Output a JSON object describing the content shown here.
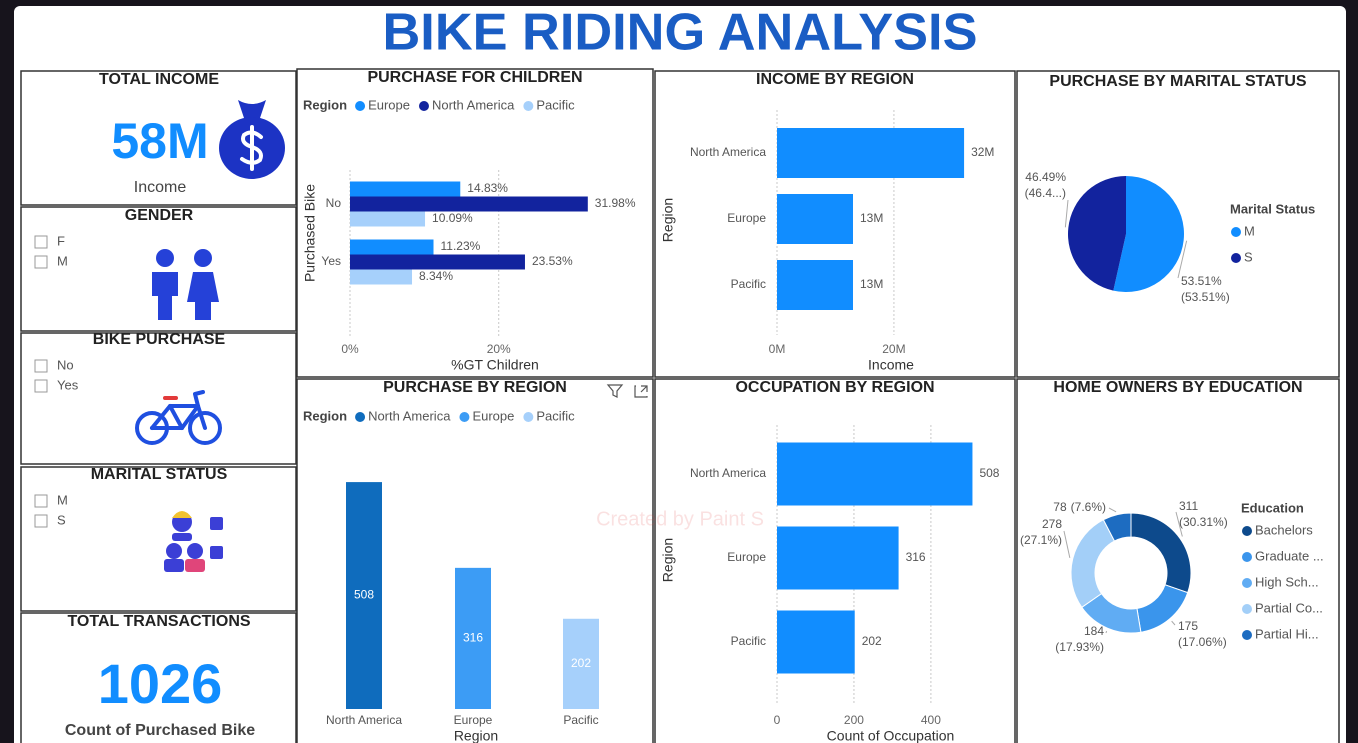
{
  "title": "BIKE RIDING ANALYSIS",
  "watermark": "Created by Paint S",
  "cards": [
    {
      "title": "TOTAL INCOME",
      "value": "58M",
      "label": "Income"
    },
    {
      "title": "TOTAL TRANSACTIONS",
      "value": "1026",
      "label": "Count of Purchased Bike"
    }
  ],
  "slicers": [
    {
      "title": "GENDER",
      "options": [
        "F",
        "M"
      ]
    },
    {
      "title": "BIKE PURCHASE",
      "options": [
        "No",
        "Yes"
      ]
    },
    {
      "title": "MARITAL STATUS",
      "options": [
        "M",
        "S"
      ]
    }
  ],
  "chart_data": [
    {
      "type": "bar",
      "orientation": "horizontal",
      "title": "PURCHASE FOR CHILDREN",
      "legend_title": "Region",
      "categories": [
        "No",
        "Yes"
      ],
      "series": [
        {
          "name": "Europe",
          "color": "#118dff",
          "values": [
            14.83,
            11.23
          ],
          "value_labels": [
            "14.83%",
            "11.23%"
          ]
        },
        {
          "name": "North America",
          "color": "#12239e",
          "values": [
            31.98,
            23.53
          ],
          "value_labels": [
            "31.98%",
            "23.53%"
          ]
        },
        {
          "name": "Pacific",
          "color": "#a6d0fb",
          "values": [
            10.09,
            8.34
          ],
          "value_labels": [
            "10.09%",
            "8.34%"
          ]
        }
      ],
      "xlim": [
        0,
        39
      ],
      "xticks": [
        {
          "value": 0,
          "label": "0%"
        },
        {
          "value": 20,
          "label": "20%"
        }
      ],
      "xlabel": "%GT Children",
      "ylabel": "Purchased Bike",
      "grid": true
    },
    {
      "type": "bar",
      "orientation": "horizontal",
      "title": "INCOME BY REGION",
      "categories": [
        "North America",
        "Europe",
        "Pacific"
      ],
      "values": [
        32000000,
        13000000,
        13000000
      ],
      "value_labels": [
        "32M",
        "13M",
        "13M"
      ],
      "color": "#118dff",
      "xlim": [
        0,
        39000000
      ],
      "xticks": [
        {
          "value": 0,
          "label": "0M"
        },
        {
          "value": 20000000,
          "label": "20M"
        }
      ],
      "xlabel": "Income",
      "ylabel": "Region",
      "grid": true
    },
    {
      "type": "pie",
      "title": "PURCHASE BY MARITAL STATUS",
      "legend_title": "Marital Status",
      "categories": [
        "M",
        "S"
      ],
      "values": [
        53.51,
        46.49
      ],
      "value_labels": [
        "53.51%",
        "46.49%"
      ],
      "percent_labels": [
        "(53.51%)",
        "(46.4...)"
      ],
      "colors": [
        "#118dff",
        "#12239e"
      ]
    },
    {
      "type": "bar",
      "orientation": "vertical",
      "title": "PURCHASE BY REGION",
      "legend_title": "Region",
      "categories": [
        "North America",
        "Europe",
        "Pacific"
      ],
      "values": [
        508,
        316,
        202
      ],
      "colors": [
        "#0f6cbd",
        "#3c9cf5",
        "#a6d0fb"
      ],
      "xlabel": "Region",
      "ylim": [
        0,
        600
      ]
    },
    {
      "type": "bar",
      "orientation": "horizontal",
      "title": "OCCUPATION BY REGION",
      "categories": [
        "North America",
        "Europe",
        "Pacific"
      ],
      "values": [
        508,
        316,
        202
      ],
      "color": "#118dff",
      "xlim": [
        0,
        590
      ],
      "xticks": [
        0,
        200,
        400
      ],
      "xlabel": "Count of Occupation",
      "ylabel": "Region",
      "grid": true
    },
    {
      "type": "pie",
      "donut": true,
      "title": "HOME OWNERS BY EDUCATION",
      "legend_title": "Education",
      "categories": [
        "Bachelors",
        "Graduate ...",
        "High Sch...",
        "Partial Co...",
        "Partial Hi..."
      ],
      "values": [
        311,
        175,
        184,
        278,
        78
      ],
      "percent_labels": [
        "(30.31%)",
        "(17.06%)",
        "(17.93%)",
        "(27.1%)",
        "(7.6%)"
      ],
      "colors": [
        "#0d4a8c",
        "#3a95ec",
        "#60acf3",
        "#a3cff8",
        "#1d6cc1"
      ]
    }
  ]
}
